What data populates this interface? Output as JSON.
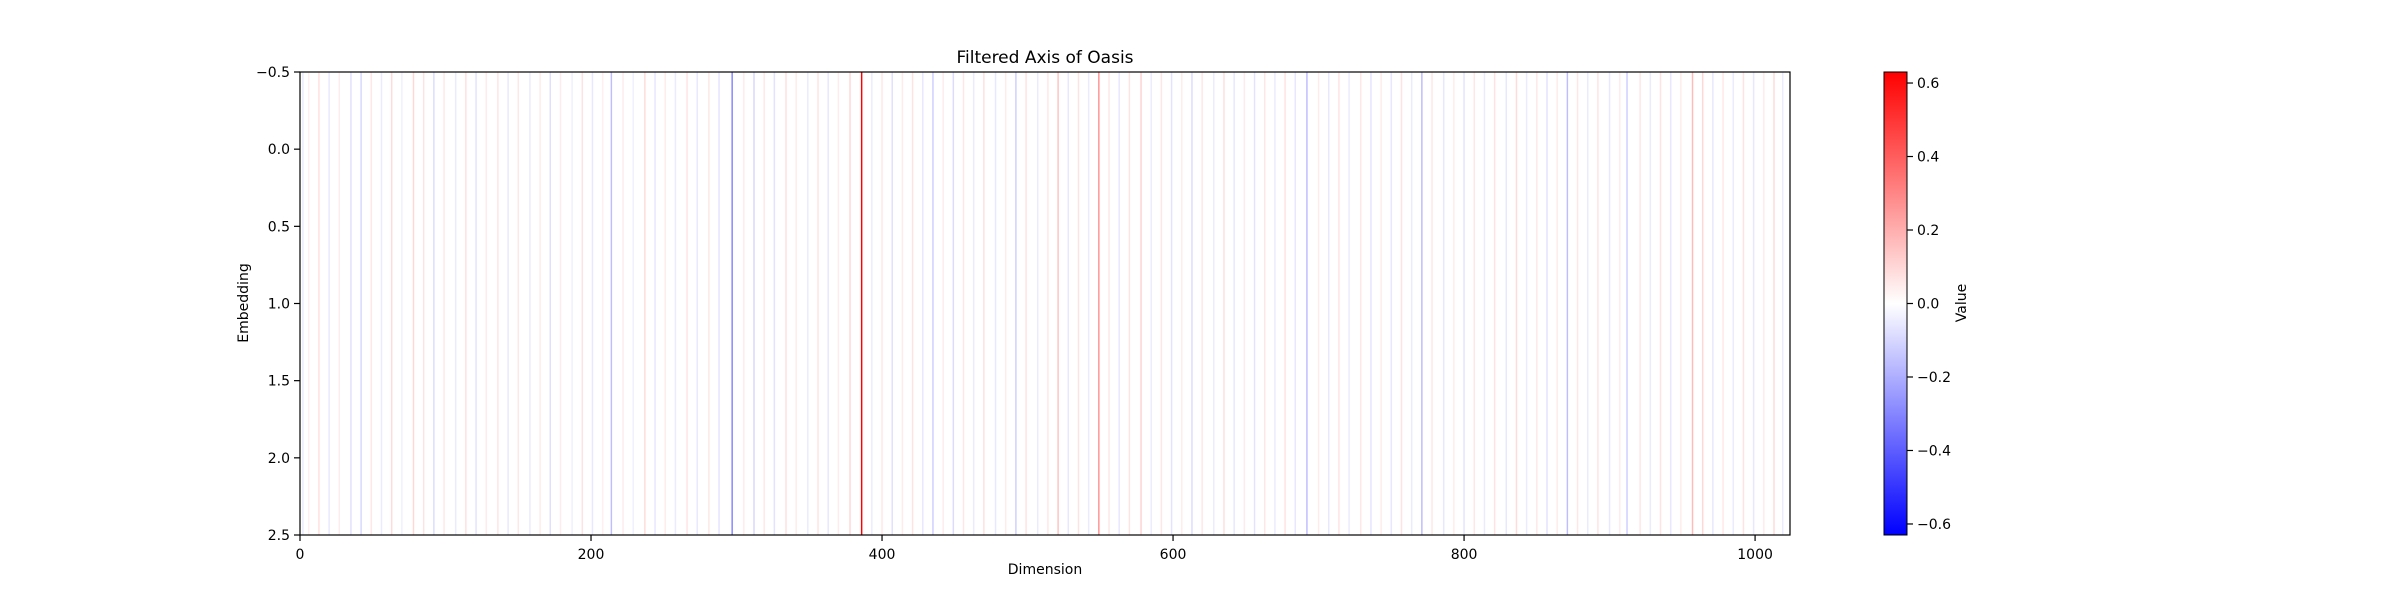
{
  "chart_data": {
    "type": "heatmap",
    "title": "Filtered Axis of Oasis",
    "xlabel": "Dimension",
    "ylabel": "Embedding",
    "xlim": [
      0,
      1024
    ],
    "ylim": [
      2.5,
      -0.5
    ],
    "xticks": [
      0,
      200,
      400,
      600,
      800,
      1000
    ],
    "xtick_labels": [
      "0",
      "200",
      "400",
      "600",
      "800",
      "1000"
    ],
    "yticks": [
      -0.5,
      0.0,
      0.5,
      1.0,
      1.5,
      2.0,
      2.5
    ],
    "ytick_labels": [
      "−0.5",
      "0.0",
      "0.5",
      "1.0",
      "1.5",
      "2.0",
      "2.5"
    ],
    "colormap": "bwr",
    "colorbar": {
      "label": "Value",
      "range": [
        -0.63,
        0.63
      ],
      "ticks": [
        -0.6,
        -0.4,
        -0.2,
        0.0,
        0.2,
        0.4,
        0.6
      ],
      "tick_labels": [
        "−0.6",
        "−0.4",
        "−0.2",
        "0.0",
        "0.2",
        "0.4",
        "0.6"
      ]
    },
    "rows": 3,
    "columns": 1024,
    "column_values": [
      {
        "x": 2,
        "value": -0.05
      },
      {
        "x": 6,
        "value": 0.04
      },
      {
        "x": 13,
        "value": 0.08
      },
      {
        "x": 20,
        "value": -0.06
      },
      {
        "x": 27,
        "value": 0.05
      },
      {
        "x": 35,
        "value": -0.08
      },
      {
        "x": 42,
        "value": -0.1
      },
      {
        "x": 49,
        "value": 0.06
      },
      {
        "x": 56,
        "value": -0.05
      },
      {
        "x": 63,
        "value": 0.09
      },
      {
        "x": 70,
        "value": -0.04
      },
      {
        "x": 78,
        "value": 0.1
      },
      {
        "x": 85,
        "value": 0.07
      },
      {
        "x": 92,
        "value": -0.09
      },
      {
        "x": 99,
        "value": 0.06
      },
      {
        "x": 107,
        "value": -0.05
      },
      {
        "x": 114,
        "value": 0.08
      },
      {
        "x": 121,
        "value": -0.07
      },
      {
        "x": 128,
        "value": 0.05
      },
      {
        "x": 136,
        "value": 0.07
      },
      {
        "x": 143,
        "value": -0.06
      },
      {
        "x": 150,
        "value": 0.06
      },
      {
        "x": 158,
        "value": -0.05
      },
      {
        "x": 165,
        "value": 0.05
      },
      {
        "x": 172,
        "value": -0.08
      },
      {
        "x": 179,
        "value": 0.05
      },
      {
        "x": 187,
        "value": -0.04
      },
      {
        "x": 194,
        "value": 0.07
      },
      {
        "x": 201,
        "value": -0.06
      },
      {
        "x": 208,
        "value": 0.04
      },
      {
        "x": 214,
        "value": -0.16
      },
      {
        "x": 222,
        "value": 0.05
      },
      {
        "x": 229,
        "value": -0.04
      },
      {
        "x": 237,
        "value": 0.09
      },
      {
        "x": 244,
        "value": -0.06
      },
      {
        "x": 251,
        "value": 0.05
      },
      {
        "x": 258,
        "value": -0.05
      },
      {
        "x": 266,
        "value": 0.07
      },
      {
        "x": 273,
        "value": -0.06
      },
      {
        "x": 281,
        "value": 0.06
      },
      {
        "x": 288,
        "value": -0.07
      },
      {
        "x": 297,
        "value": -0.3
      },
      {
        "x": 305,
        "value": 0.05
      },
      {
        "x": 312,
        "value": -0.1
      },
      {
        "x": 319,
        "value": 0.06
      },
      {
        "x": 326,
        "value": -0.07
      },
      {
        "x": 334,
        "value": 0.08
      },
      {
        "x": 341,
        "value": 0.05
      },
      {
        "x": 349,
        "value": -0.05
      },
      {
        "x": 356,
        "value": 0.07
      },
      {
        "x": 363,
        "value": -0.06
      },
      {
        "x": 370,
        "value": 0.05
      },
      {
        "x": 378,
        "value": 0.1
      },
      {
        "x": 386,
        "value": 0.63
      },
      {
        "x": 393,
        "value": -0.05
      },
      {
        "x": 400,
        "value": 0.06
      },
      {
        "x": 407,
        "value": -0.08
      },
      {
        "x": 414,
        "value": 0.05
      },
      {
        "x": 421,
        "value": 0.07
      },
      {
        "x": 428,
        "value": -0.06
      },
      {
        "x": 435,
        "value": -0.12
      },
      {
        "x": 442,
        "value": 0.05
      },
      {
        "x": 449,
        "value": -0.09
      },
      {
        "x": 456,
        "value": 0.06
      },
      {
        "x": 463,
        "value": -0.05
      },
      {
        "x": 470,
        "value": 0.08
      },
      {
        "x": 478,
        "value": -0.06
      },
      {
        "x": 485,
        "value": 0.05
      },
      {
        "x": 492,
        "value": -0.12
      },
      {
        "x": 499,
        "value": 0.07
      },
      {
        "x": 507,
        "value": -0.05
      },
      {
        "x": 514,
        "value": 0.06
      },
      {
        "x": 521,
        "value": 0.15
      },
      {
        "x": 528,
        "value": -0.06
      },
      {
        "x": 535,
        "value": 0.07
      },
      {
        "x": 542,
        "value": -0.05
      },
      {
        "x": 549,
        "value": 0.27
      },
      {
        "x": 556,
        "value": 0.06
      },
      {
        "x": 563,
        "value": -0.06
      },
      {
        "x": 570,
        "value": 0.07
      },
      {
        "x": 578,
        "value": 0.11
      },
      {
        "x": 585,
        "value": -0.05
      },
      {
        "x": 592,
        "value": 0.06
      },
      {
        "x": 599,
        "value": -0.07
      },
      {
        "x": 606,
        "value": 0.05
      },
      {
        "x": 613,
        "value": -0.09
      },
      {
        "x": 620,
        "value": 0.06
      },
      {
        "x": 628,
        "value": -0.05
      },
      {
        "x": 635,
        "value": 0.08
      },
      {
        "x": 642,
        "value": -0.06
      },
      {
        "x": 649,
        "value": 0.05
      },
      {
        "x": 656,
        "value": -0.07
      },
      {
        "x": 663,
        "value": 0.06
      },
      {
        "x": 670,
        "value": -0.05
      },
      {
        "x": 677,
        "value": 0.07
      },
      {
        "x": 684,
        "value": -0.06
      },
      {
        "x": 692,
        "value": -0.16
      },
      {
        "x": 700,
        "value": 0.05
      },
      {
        "x": 707,
        "value": -0.06
      },
      {
        "x": 714,
        "value": 0.07
      },
      {
        "x": 721,
        "value": -0.05
      },
      {
        "x": 729,
        "value": 0.06
      },
      {
        "x": 736,
        "value": -0.07
      },
      {
        "x": 743,
        "value": 0.05
      },
      {
        "x": 750,
        "value": -0.06
      },
      {
        "x": 757,
        "value": 0.07
      },
      {
        "x": 764,
        "value": -0.05
      },
      {
        "x": 771,
        "value": -0.17
      },
      {
        "x": 778,
        "value": 0.06
      },
      {
        "x": 786,
        "value": -0.06
      },
      {
        "x": 793,
        "value": 0.05
      },
      {
        "x": 800,
        "value": -0.07
      },
      {
        "x": 807,
        "value": 0.06
      },
      {
        "x": 814,
        "value": -0.05
      },
      {
        "x": 821,
        "value": 0.07
      },
      {
        "x": 829,
        "value": -0.06
      },
      {
        "x": 836,
        "value": 0.09
      },
      {
        "x": 843,
        "value": -0.05
      },
      {
        "x": 850,
        "value": 0.06
      },
      {
        "x": 857,
        "value": -0.07
      },
      {
        "x": 864,
        "value": 0.05
      },
      {
        "x": 871,
        "value": -0.16
      },
      {
        "x": 878,
        "value": 0.06
      },
      {
        "x": 885,
        "value": -0.05
      },
      {
        "x": 892,
        "value": 0.07
      },
      {
        "x": 900,
        "value": -0.06
      },
      {
        "x": 907,
        "value": 0.05
      },
      {
        "x": 912,
        "value": -0.12
      },
      {
        "x": 921,
        "value": 0.06
      },
      {
        "x": 928,
        "value": -0.05
      },
      {
        "x": 935,
        "value": 0.07
      },
      {
        "x": 942,
        "value": -0.06
      },
      {
        "x": 949,
        "value": 0.05
      },
      {
        "x": 957,
        "value": 0.17
      },
      {
        "x": 964,
        "value": 0.1
      },
      {
        "x": 971,
        "value": -0.06
      },
      {
        "x": 978,
        "value": 0.06
      },
      {
        "x": 985,
        "value": -0.05
      },
      {
        "x": 992,
        "value": 0.07
      },
      {
        "x": 999,
        "value": -0.06
      },
      {
        "x": 1006,
        "value": 0.05
      },
      {
        "x": 1013,
        "value": 0.09
      },
      {
        "x": 1019,
        "value": -0.05
      }
    ]
  }
}
